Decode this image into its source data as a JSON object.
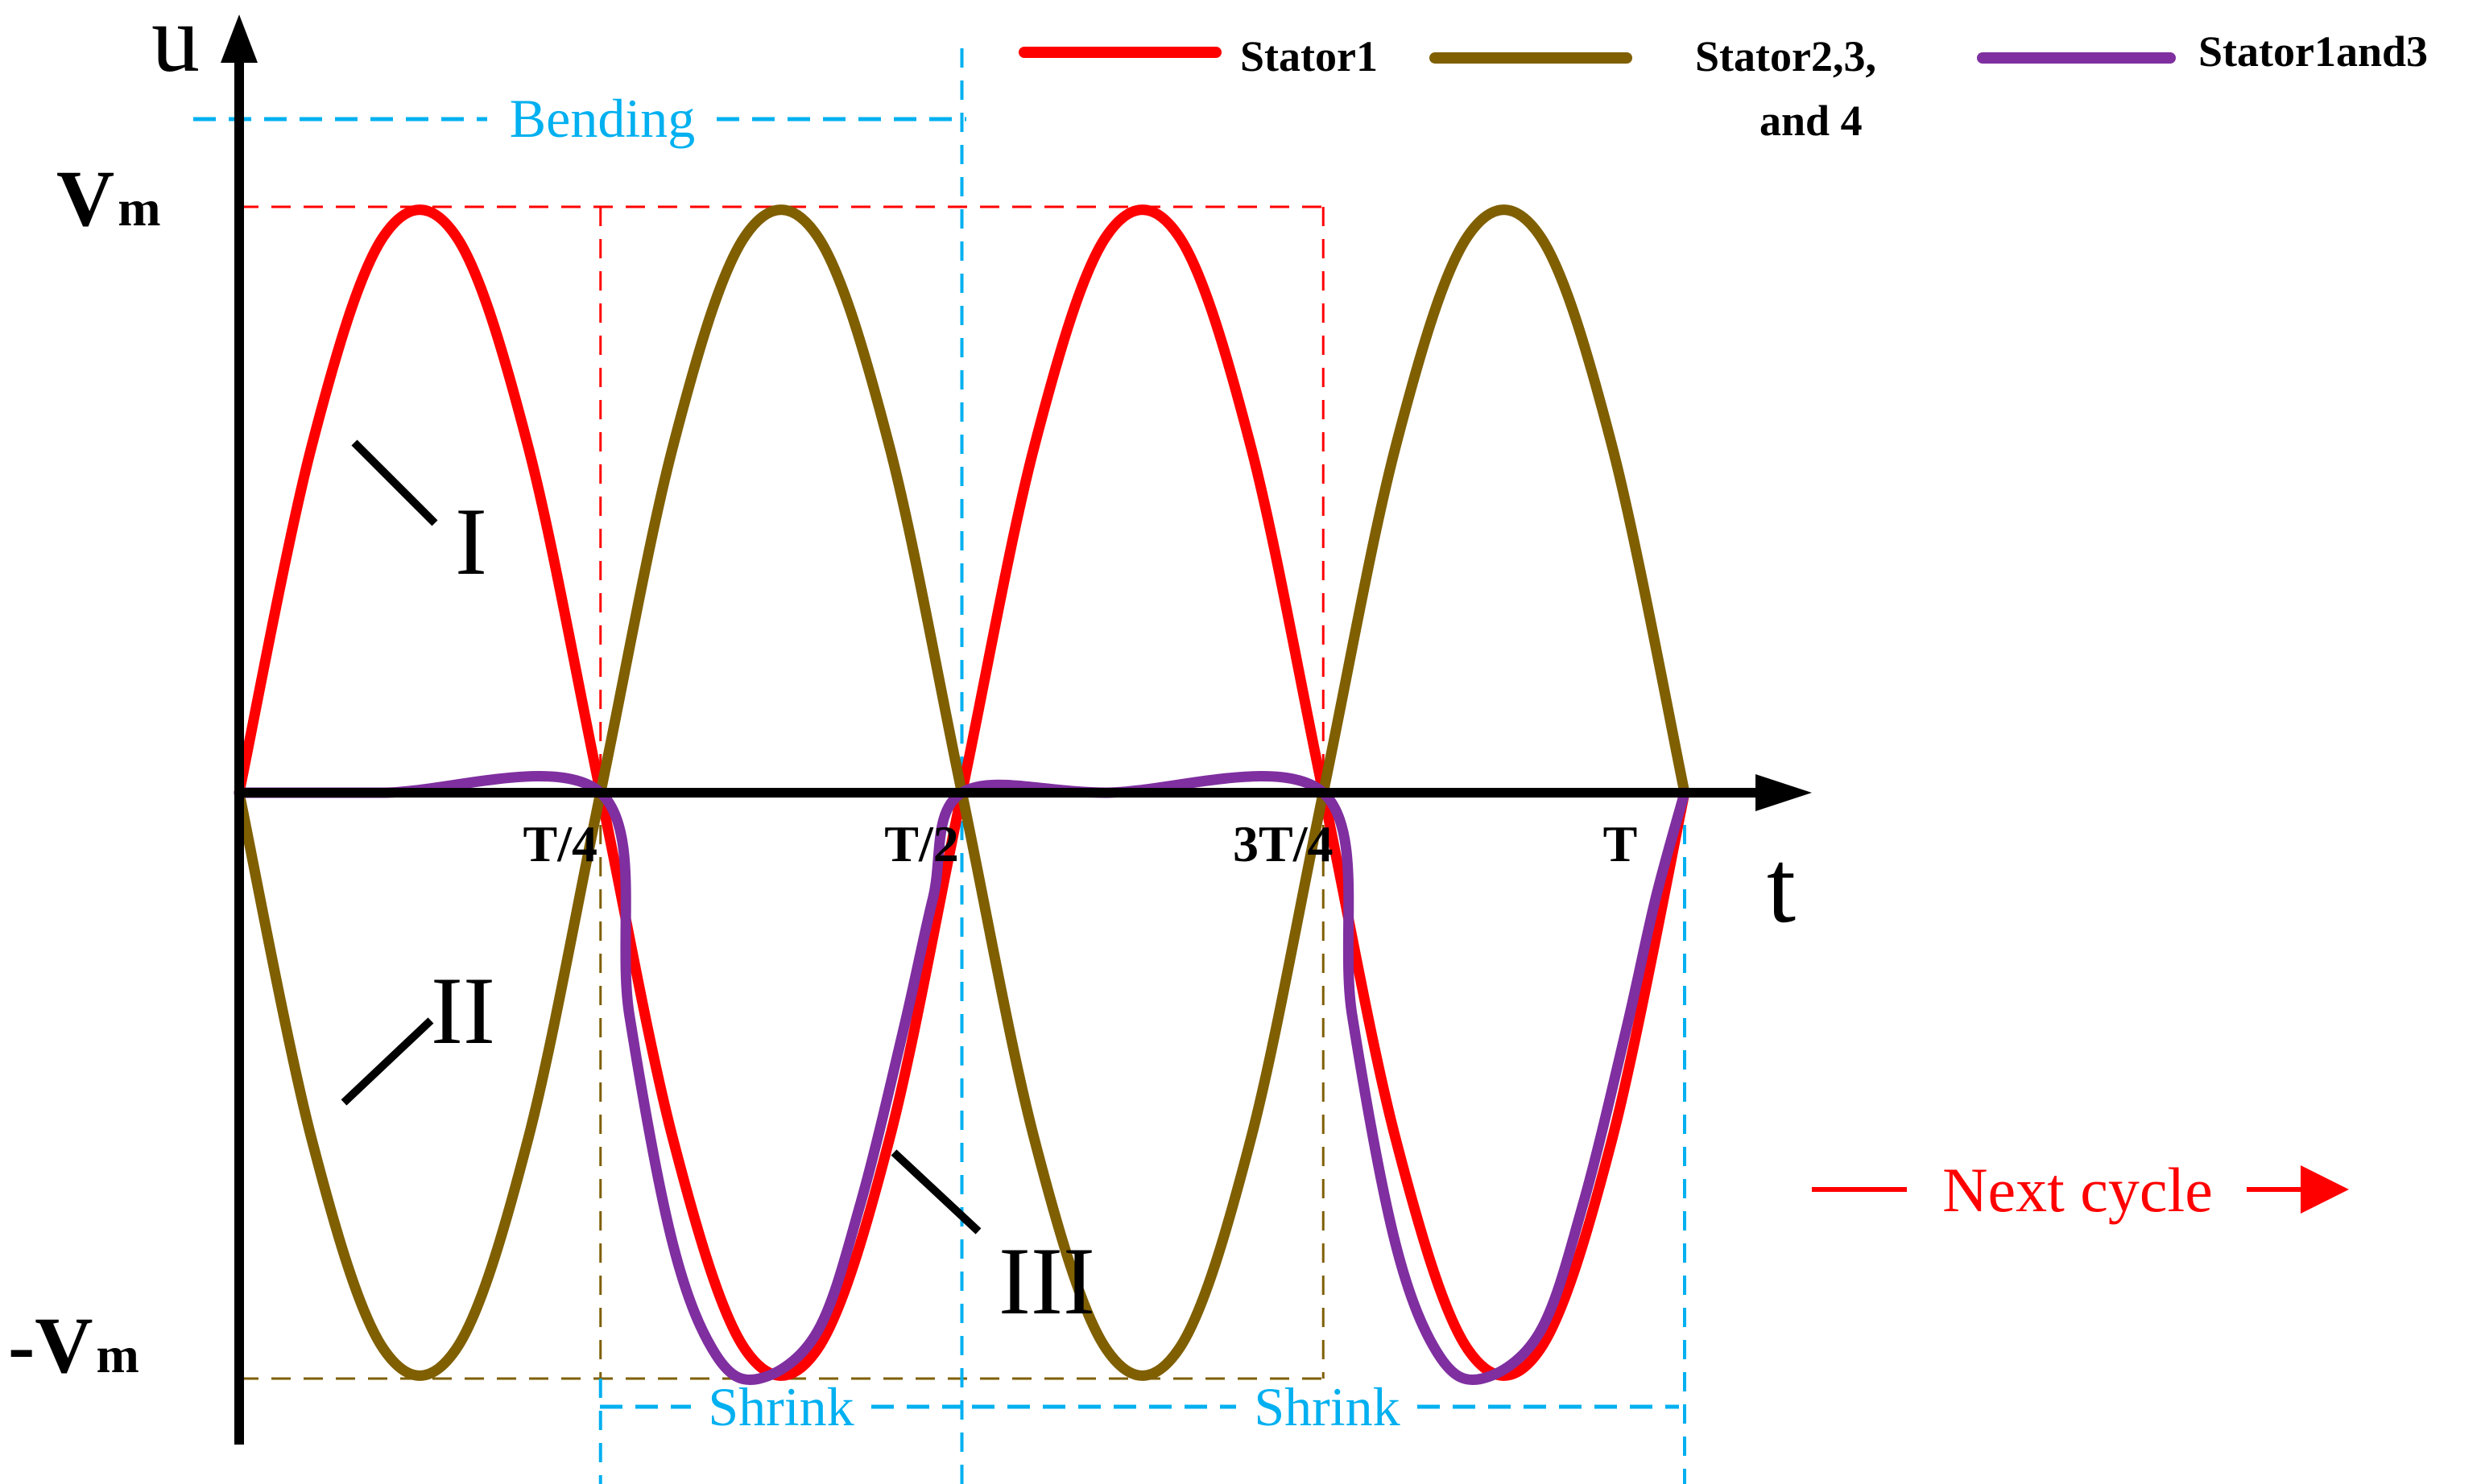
{
  "chart_data": {
    "type": "line",
    "xlabel": "t",
    "ylabel": "u",
    "y_tick_labels": {
      "top": "V",
      "top_sub": "m",
      "bottom": "-V",
      "bottom_sub": "m"
    },
    "x_tick_labels": [
      {
        "label": "T/4",
        "x": 0.25
      },
      {
        "label": "T/2",
        "x": 0.5
      },
      {
        "label": "3T/4",
        "x": 0.75
      },
      {
        "label": "T",
        "x": 1.0
      }
    ],
    "xlim": [
      0,
      1
    ],
    "ylim": [
      -1,
      1
    ],
    "legend": {
      "position": "top-right",
      "entries": [
        {
          "key": "stator1",
          "line1": "Stator1",
          "line2": ""
        },
        {
          "key": "stator234",
          "line1": "Stator2,3,",
          "line2": "and 4"
        },
        {
          "key": "stator13",
          "line1": "Stator1and3",
          "line2": ""
        }
      ]
    },
    "series": [
      {
        "key": "stator1",
        "name": "Stator1",
        "color": "#ff0000",
        "x": [
          0,
          0.05,
          0.1,
          0.15,
          0.2,
          0.25,
          0.3,
          0.35,
          0.4,
          0.45,
          0.5,
          0.55,
          0.6,
          0.65,
          0.7,
          0.75,
          0.8,
          0.85,
          0.9,
          0.95,
          1.0
        ],
        "y": [
          0,
          0.59,
          0.95,
          0.95,
          0.59,
          0,
          -0.59,
          -0.95,
          -0.95,
          -0.59,
          0,
          0.59,
          0.95,
          0.95,
          0.59,
          0,
          -0.59,
          -0.95,
          -0.95,
          -0.59,
          0
        ]
      },
      {
        "key": "stator234",
        "name": "Stator2,3, and 4",
        "color": "#7f5f00",
        "x": [
          0,
          0.05,
          0.1,
          0.15,
          0.2,
          0.25,
          0.3,
          0.35,
          0.4,
          0.45,
          0.5,
          0.55,
          0.6,
          0.65,
          0.7,
          0.75,
          0.8,
          0.85,
          0.9,
          0.95,
          1.0
        ],
        "y": [
          0,
          -0.59,
          -0.95,
          -0.95,
          -0.59,
          0,
          0.59,
          0.95,
          0.95,
          0.59,
          0,
          -0.59,
          -0.95,
          -0.95,
          -0.59,
          0,
          0.59,
          0.95,
          0.95,
          0.59,
          0
        ]
      },
      {
        "key": "stator13",
        "name": "Stator1and3",
        "color": "#7f2fa0",
        "x": [
          0,
          0.1,
          0.25,
          0.27,
          0.3,
          0.33,
          0.36,
          0.4,
          0.43,
          0.46,
          0.48,
          0.5,
          0.6,
          0.75,
          0.77,
          0.8,
          0.83,
          0.86,
          0.9,
          0.93,
          0.96,
          0.98,
          1.0
        ],
        "y": [
          0,
          0,
          0,
          -0.38,
          -0.77,
          -0.96,
          -1.0,
          -0.92,
          -0.7,
          -0.4,
          -0.18,
          0,
          0,
          0,
          -0.38,
          -0.77,
          -0.96,
          -1.0,
          -0.92,
          -0.7,
          -0.4,
          -0.18,
          0
        ]
      }
    ],
    "curve_labels": [
      "I",
      "II",
      "III"
    ],
    "annotations": {
      "bending": "Bending",
      "shrink_1": "Shrink",
      "shrink_2": "Shrink",
      "next_cycle": "Next cycle"
    },
    "colors": {
      "axis": "#000000",
      "guide_red": "#ff0000",
      "guide_brown": "#7f5f00",
      "guide_blue": "#00b0f0",
      "annotation_blue": "#00b0f0",
      "next_cycle": "#ff0000"
    }
  }
}
